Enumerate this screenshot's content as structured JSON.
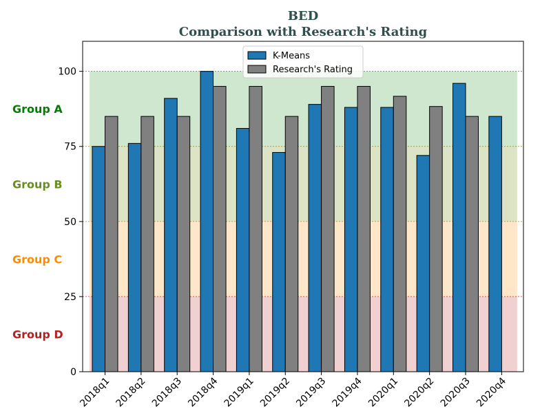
{
  "chart_data": {
    "type": "bar",
    "title": "BED",
    "subtitle": "Comparison with Research's Rating",
    "categories": [
      "2018q1",
      "2018q2",
      "2018q3",
      "2018q4",
      "2019q1",
      "2019q2",
      "2019q3",
      "2019q4",
      "2020q1",
      "2020q2",
      "2020q3",
      "2020q4"
    ],
    "series": [
      {
        "name": "K-Means",
        "color": "#1f77b4",
        "values": [
          75,
          76,
          91,
          100,
          81,
          73,
          89,
          88,
          88,
          72,
          96,
          85
        ]
      },
      {
        "name": "Research's Rating",
        "color": "#808080",
        "values": [
          85,
          85,
          85,
          95,
          95,
          85,
          95,
          95,
          91.7,
          88.3,
          85,
          null
        ]
      }
    ],
    "ylim": [
      0,
      110
    ],
    "yticks": [
      0,
      25,
      50,
      75,
      100
    ],
    "legend_position": "top-center",
    "bands": [
      {
        "label": "Group A",
        "from": 75,
        "to": 100,
        "color": "#cfe6cf",
        "line_color": "#3a8a3a",
        "label_color": "#008000"
      },
      {
        "label": "Group B",
        "from": 50,
        "to": 75,
        "color": "#dde3c5",
        "line_color": "#8a8a2a",
        "label_color": "#6b8e23"
      },
      {
        "label": "Group C",
        "from": 25,
        "to": 50,
        "color": "#fde7c8",
        "line_color": "#e08a1e",
        "label_color": "#ff8c00"
      },
      {
        "label": "Group D",
        "from": 0,
        "to": 25,
        "color": "#f0d0d1",
        "line_color": "#c03030",
        "label_color": "#b22222"
      }
    ]
  }
}
